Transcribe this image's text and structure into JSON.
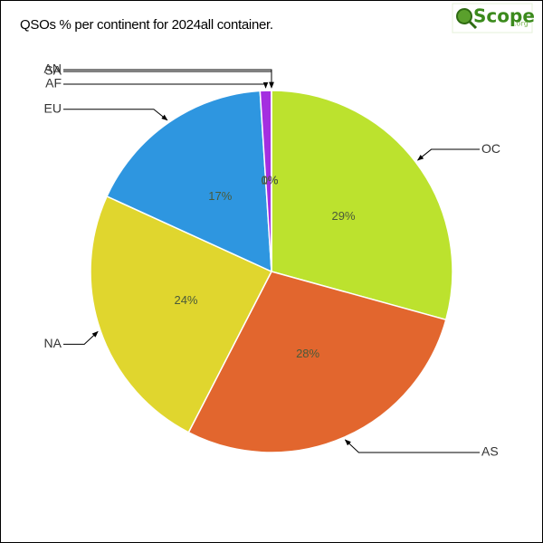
{
  "chart_data": {
    "type": "pie",
    "title": "QSOs % per continent for 2024all container.",
    "logo": "Scope",
    "logo_suffix": ".org",
    "categories": [
      "OC",
      "AS",
      "NA",
      "EU",
      "AF",
      "SA",
      "AN"
    ],
    "values": [
      29,
      28,
      24,
      17,
      1,
      0,
      0
    ],
    "value_labels": [
      "29%",
      "28%",
      "24%",
      "17%",
      "1%",
      "0%",
      "0%"
    ],
    "colors": [
      "#bce22e",
      "#e2662e",
      "#e0d62e",
      "#2e96e0",
      "#a42ee0",
      "#2ee0a0",
      "#e02e6a"
    ]
  }
}
